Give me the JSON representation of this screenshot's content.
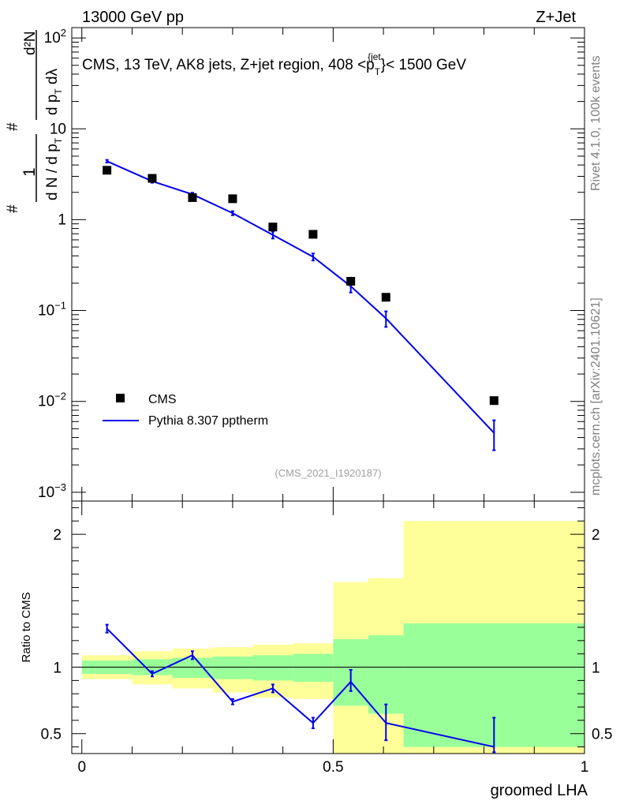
{
  "header": {
    "energy": "13000 GeV pp",
    "process": "Z+Jet"
  },
  "side_labels": {
    "rivet": "Rivet 4.1.0,  100k events",
    "mcplots": "mcplots.cern.ch [arXiv:2401.10621]"
  },
  "colors": {
    "data": "#000000",
    "mc": "#0000ee",
    "band_inner": "#99ff99",
    "band_outer": "#ffff99",
    "frame": "#000000"
  },
  "chart_data": [
    {
      "type": "scatter",
      "title": "CMS, 13 TeV, AK8 jets, Z+jet region, 408 <p_T^{jet}< 1500 GeV",
      "title_parts": {
        "prefix": "CMS, 13 TeV, AK8 jets, Z+jet region, 408 <p",
        "sub": "T",
        "sup": "{jet",
        "suffix": "}< 1500 GeV"
      },
      "analysis_id": "(CMS_2021_I1920187)",
      "yscale": "log",
      "ylim": [
        0.0008,
        130
      ],
      "xlim": [
        -0.02,
        1.0
      ],
      "ylabel": {
        "num_prefix": "#",
        "num_main": "1",
        "den": "d N / d p",
        "den_sub": "T",
        "num2_prefix": "#",
        "num2": "d²N",
        "den2": "d p",
        "den2_sub": "T",
        "den2_suffix": " dλ"
      },
      "y_ticks": [
        {
          "value": 100,
          "mant": "10",
          "exp": "2"
        },
        {
          "value": 10,
          "mant": "10",
          "exp": ""
        },
        {
          "value": 1,
          "mant": "1",
          "exp": ""
        },
        {
          "value": 0.1,
          "mant": "10",
          "exp": "−1"
        },
        {
          "value": 0.01,
          "mant": "10",
          "exp": "−2"
        },
        {
          "value": 0.001,
          "mant": "10",
          "exp": "−3"
        }
      ],
      "series": [
        {
          "name": "CMS",
          "style": "markers",
          "x": [
            0.05,
            0.14,
            0.22,
            0.3,
            0.38,
            0.46,
            0.535,
            0.605,
            0.82
          ],
          "y": [
            3.5,
            2.85,
            1.75,
            1.7,
            0.83,
            0.69,
            0.21,
            0.14,
            0.0102
          ]
        },
        {
          "name": "Pythia 8.307 pptherm",
          "style": "line",
          "x": [
            0.05,
            0.14,
            0.22,
            0.3,
            0.38,
            0.46,
            0.535,
            0.605,
            0.82
          ],
          "y": [
            4.4,
            2.65,
            1.9,
            1.18,
            0.68,
            0.39,
            0.185,
            0.082,
            0.0045
          ],
          "err_lo": [
            4.25,
            2.55,
            1.82,
            1.12,
            0.62,
            0.355,
            0.158,
            0.066,
            0.0029
          ],
          "err_hi": [
            4.55,
            2.75,
            1.98,
            1.24,
            0.74,
            0.425,
            0.212,
            0.098,
            0.0062
          ]
        }
      ],
      "legend": [
        "CMS",
        "Pythia 8.307 pptherm"
      ]
    },
    {
      "type": "line",
      "ylabel": "Ratio to CMS",
      "xlabel": "groomed LHA",
      "ylim": [
        0.35,
        2.25
      ],
      "xlim": [
        -0.02,
        1.0
      ],
      "x_ticks": [
        {
          "value": 0,
          "label": "0"
        },
        {
          "value": 0.5,
          "label": "0.5"
        },
        {
          "value": 1,
          "label": "1"
        }
      ],
      "y_ticks": [
        {
          "value": 0.5,
          "label": "0.5"
        },
        {
          "value": 1,
          "label": "1"
        },
        {
          "value": 2,
          "label": "2"
        }
      ],
      "bands": [
        {
          "x0": 0.0,
          "x1": 0.1,
          "inner": [
            0.95,
            1.05
          ],
          "outer": [
            0.91,
            1.09
          ]
        },
        {
          "x0": 0.1,
          "x1": 0.18,
          "inner": [
            0.94,
            1.06
          ],
          "outer": [
            0.87,
            1.12
          ]
        },
        {
          "x0": 0.18,
          "x1": 0.26,
          "inner": [
            0.92,
            1.07
          ],
          "outer": [
            0.84,
            1.14
          ]
        },
        {
          "x0": 0.26,
          "x1": 0.34,
          "inner": [
            0.91,
            1.08
          ],
          "outer": [
            0.81,
            1.15
          ]
        },
        {
          "x0": 0.34,
          "x1": 0.42,
          "inner": [
            0.9,
            1.09
          ],
          "outer": [
            0.77,
            1.17
          ]
        },
        {
          "x0": 0.42,
          "x1": 0.5,
          "inner": [
            0.89,
            1.1
          ],
          "outer": [
            0.76,
            1.18
          ]
        },
        {
          "x0": 0.5,
          "x1": 0.57,
          "inner": [
            0.71,
            1.21
          ],
          "outer": [
            0.35,
            1.64
          ]
        },
        {
          "x0": 0.57,
          "x1": 0.64,
          "inner": [
            0.65,
            1.24
          ],
          "outer": [
            0.35,
            1.67
          ]
        },
        {
          "x0": 0.64,
          "x1": 1.0,
          "inner": [
            0.4,
            1.33
          ],
          "outer": [
            0.35,
            2.1
          ]
        }
      ],
      "series": [
        {
          "name": "Pythia 8.307 pptherm",
          "x": [
            0.05,
            0.14,
            0.22,
            0.3,
            0.38,
            0.46,
            0.535,
            0.605,
            0.82
          ],
          "y": [
            1.29,
            0.95,
            1.09,
            0.74,
            0.84,
            0.58,
            0.89,
            0.58,
            0.4
          ],
          "err_lo": [
            1.26,
            0.93,
            1.06,
            0.72,
            0.81,
            0.54,
            0.82,
            0.45,
            0.36
          ],
          "err_hi": [
            1.32,
            0.97,
            1.12,
            0.76,
            0.87,
            0.62,
            0.98,
            0.72,
            0.62
          ]
        }
      ]
    }
  ]
}
